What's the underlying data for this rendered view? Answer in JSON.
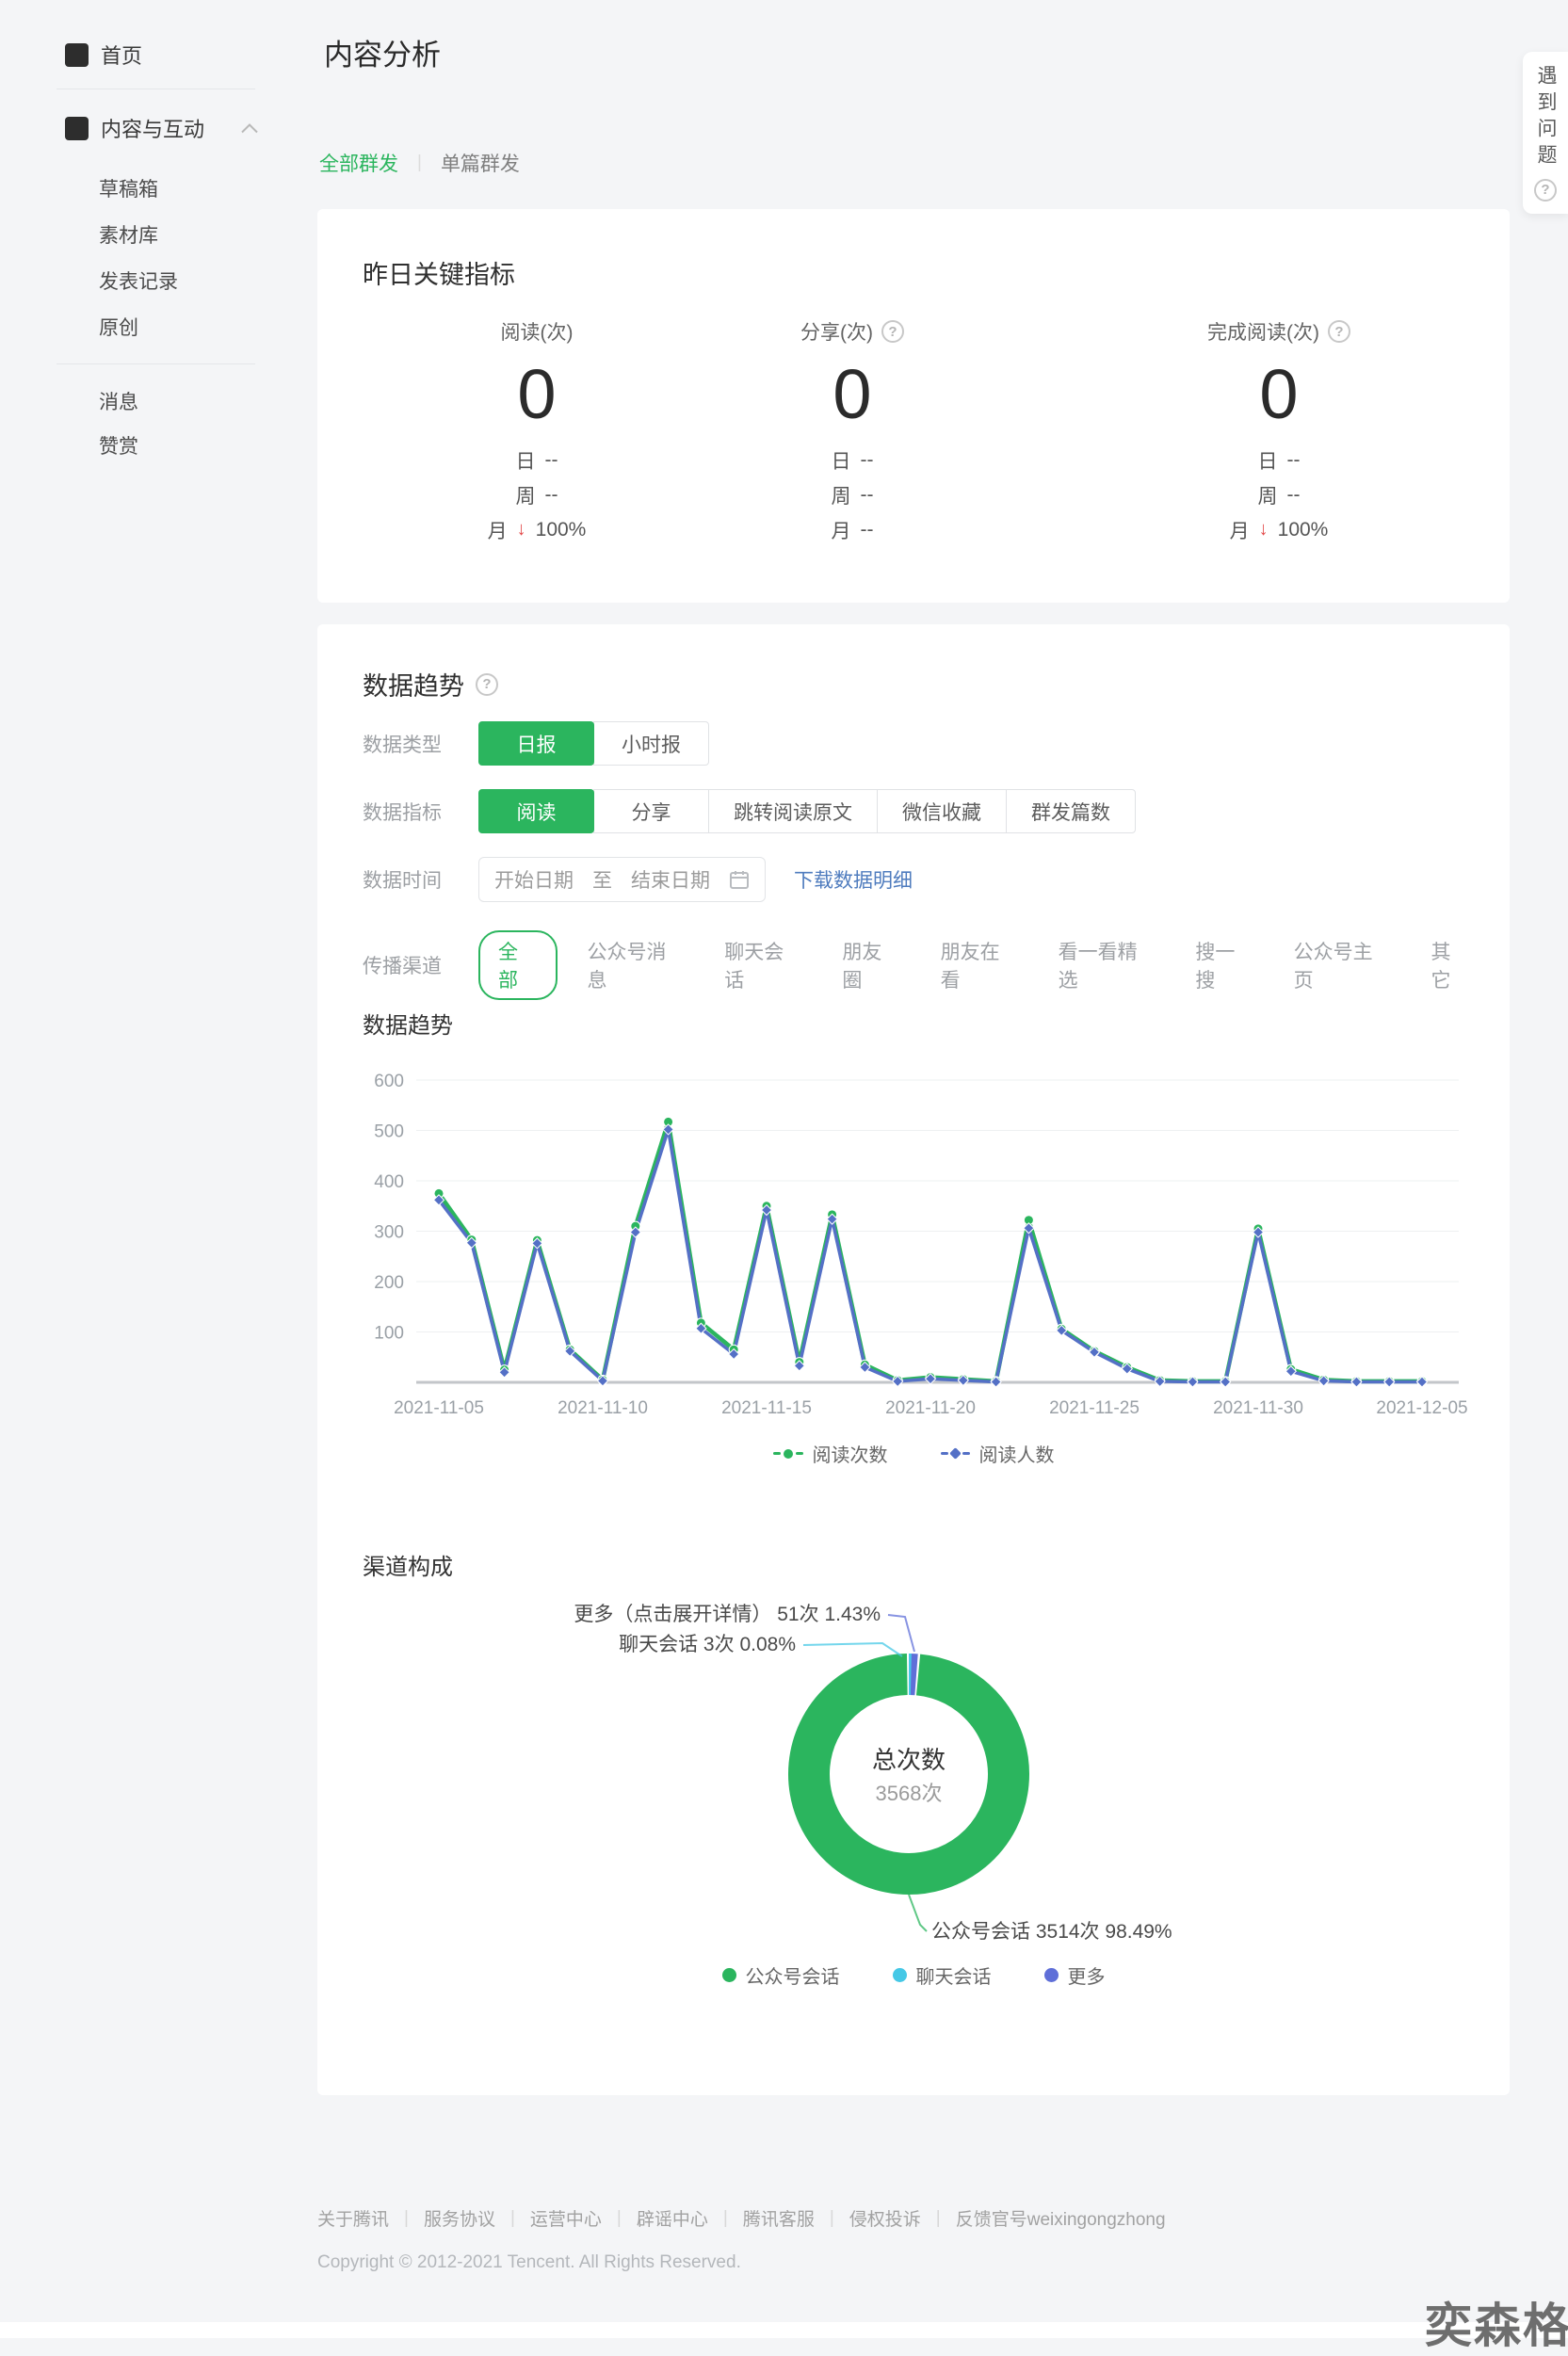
{
  "app": {
    "page_title": "内容分析",
    "help_tab_label": "遇到问题",
    "watermark": "奕森格"
  },
  "sidebar": {
    "home_label": "首页",
    "section_label": "内容与互动",
    "sub_items": [
      "草稿箱",
      "素材库",
      "发表记录",
      "原创"
    ],
    "bottom_items": [
      "消息",
      "赞赏"
    ]
  },
  "tabs": [
    {
      "label": "全部群发",
      "active": true
    },
    {
      "label": "单篇群发",
      "active": false
    }
  ],
  "metrics_card": {
    "title": "昨日关键指标",
    "metrics": [
      {
        "label": "阅读(次)",
        "has_help": false,
        "value": "0",
        "rows": [
          {
            "k": "日",
            "v": "--"
          },
          {
            "k": "周",
            "v": "--"
          },
          {
            "k": "月",
            "v": "100%",
            "trend": "down"
          }
        ]
      },
      {
        "label": "分享(次)",
        "has_help": true,
        "value": "0",
        "rows": [
          {
            "k": "日",
            "v": "--"
          },
          {
            "k": "周",
            "v": "--"
          },
          {
            "k": "月",
            "v": "--"
          }
        ]
      },
      {
        "label": "完成阅读(次)",
        "has_help": true,
        "value": "0",
        "rows": [
          {
            "k": "日",
            "v": "--"
          },
          {
            "k": "周",
            "v": "--"
          },
          {
            "k": "月",
            "v": "100%",
            "trend": "down"
          }
        ]
      }
    ]
  },
  "trend_card": {
    "title": "数据趋势",
    "data_type": {
      "label": "数据类型",
      "options": [
        {
          "label": "日报",
          "active": true
        },
        {
          "label": "小时报",
          "active": false
        }
      ]
    },
    "data_metric": {
      "label": "数据指标",
      "options": [
        {
          "label": "阅读",
          "active": true
        },
        {
          "label": "分享",
          "active": false
        },
        {
          "label": "跳转阅读原文",
          "active": false
        },
        {
          "label": "微信收藏",
          "active": false
        },
        {
          "label": "群发篇数",
          "active": false
        }
      ]
    },
    "data_time": {
      "label": "数据时间",
      "start_placeholder": "开始日期",
      "range_separator": "至",
      "end_placeholder": "结束日期",
      "download_link": "下载数据明细"
    },
    "channels": {
      "label": "传播渠道",
      "options": [
        {
          "label": "全部",
          "active": true
        },
        {
          "label": "公众号消息",
          "active": false
        },
        {
          "label": "聊天会话",
          "active": false
        },
        {
          "label": "朋友圈",
          "active": false
        },
        {
          "label": "朋友在看",
          "active": false
        },
        {
          "label": "看一看精选",
          "active": false
        },
        {
          "label": "搜一搜",
          "active": false
        },
        {
          "label": "公众号主页",
          "active": false
        },
        {
          "label": "其它",
          "active": false
        }
      ]
    },
    "chart_title": "数据趋势",
    "channel_chart_title": "渠道构成"
  },
  "chart_data": [
    {
      "type": "line",
      "title": "数据趋势",
      "x": [
        "2021-11-05",
        "2021-11-06",
        "2021-11-07",
        "2021-11-08",
        "2021-11-09",
        "2021-11-10",
        "2021-11-11",
        "2021-11-12",
        "2021-11-13",
        "2021-11-14",
        "2021-11-15",
        "2021-11-16",
        "2021-11-17",
        "2021-11-18",
        "2021-11-19",
        "2021-11-20",
        "2021-11-21",
        "2021-11-22",
        "2021-11-23",
        "2021-11-24",
        "2021-11-25",
        "2021-11-26",
        "2021-11-27",
        "2021-11-28",
        "2021-11-29",
        "2021-11-30",
        "2021-12-01",
        "2021-12-02",
        "2021-12-03",
        "2021-12-04",
        "2021-12-05"
      ],
      "series": [
        {
          "name": "阅读次数",
          "color": "#2bb55e",
          "values": [
            375,
            283,
            25,
            282,
            65,
            5,
            310,
            517,
            118,
            65,
            350,
            40,
            333,
            35,
            4,
            10,
            6,
            2,
            322,
            106,
            62,
            30,
            4,
            2,
            2,
            305,
            26,
            5,
            2,
            2,
            2
          ]
        },
        {
          "name": "阅读人数",
          "color": "#5470c6",
          "values": [
            362,
            277,
            20,
            276,
            62,
            3,
            298,
            502,
            107,
            56,
            342,
            33,
            324,
            30,
            2,
            7,
            4,
            1,
            306,
            103,
            60,
            27,
            2,
            1,
            1,
            298,
            22,
            3,
            1,
            1,
            1
          ]
        }
      ],
      "ylim": [
        0,
        600
      ],
      "yticks": [
        100,
        200,
        300,
        400,
        500,
        600
      ],
      "xticks": [
        "2021-11-05",
        "2021-11-10",
        "2021-11-15",
        "2021-11-20",
        "2021-11-25",
        "2021-11-30",
        "2021-12-05"
      ],
      "grid": true,
      "legend_position": "bottom"
    },
    {
      "type": "pie",
      "donut": true,
      "title": "渠道构成",
      "center_label": "总次数",
      "center_value": "3568次",
      "total": 3568,
      "unit": "次",
      "slices": [
        {
          "name": "公众号会话",
          "value": 3514,
          "percent": 98.49,
          "color": "#2bb55e",
          "callout": "公众号会话 3514次 98.49%"
        },
        {
          "name": "聊天会话",
          "value": 3,
          "percent": 0.08,
          "color": "#45c8e6",
          "callout": "聊天会话 3次 0.08%"
        },
        {
          "name": "更多",
          "full_name": "更多（点击展开详情）",
          "value": 51,
          "percent": 1.43,
          "color": "#5f6fd8",
          "callout": "更多（点击展开详情） 51次 1.43%"
        }
      ],
      "legend": [
        "公众号会话",
        "聊天会话",
        "更多"
      ],
      "legend_position": "bottom"
    }
  ],
  "footer": {
    "links": [
      "关于腾讯",
      "服务协议",
      "运营中心",
      "辟谣中心",
      "腾讯客服",
      "侵权投诉",
      "反馈官号weixingongzhong"
    ],
    "copyright": "Copyright © 2012-2021 Tencent. All Rights Reserved."
  },
  "colors": {
    "green": "#2bb55e",
    "blue": "#5470c6",
    "cyan": "#45c8e6",
    "purple": "#5f6fd8",
    "red": "#e34a4a",
    "link_blue": "#4f7cbe"
  }
}
